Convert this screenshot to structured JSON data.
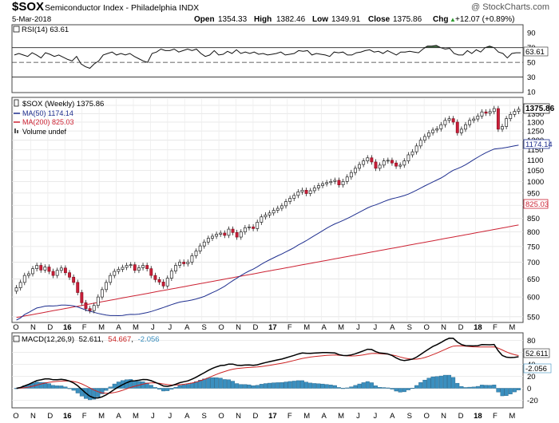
{
  "header": {
    "symbol": "$SOX",
    "name": "Semiconductor Index - Philadelphia  INDX",
    "date": "5-Mar-2018",
    "watermark": "@ StockCharts.com",
    "quote_open_label": "Open",
    "quote_open": "1354.33",
    "quote_high_label": "High",
    "quote_high": "1382.46",
    "quote_low_label": "Low",
    "quote_low": "1349.91",
    "quote_close_label": "Close",
    "quote_close": "1375.86",
    "quote_chg_label": "Chg",
    "quote_chg": "+12.07 (+0.89%)",
    "quote_chg_arrow": "▲"
  },
  "colors": {
    "up_candle": "#ffffff",
    "down_candle": "#cc1f3a",
    "ma50": "#1f2f8f",
    "ma200": "#cc2233",
    "rsi_fill": "#4c7a4c",
    "macd_line": "#000000",
    "signal_line": "#cc2222",
    "histogram": "#3a8fbf"
  },
  "chart_data": [
    {
      "panel": "rsi",
      "type": "line",
      "label": "RSI(14) 63.61",
      "last_value_label": "63.61",
      "ylim": [
        10,
        100
      ],
      "y_ticks": [
        90,
        70,
        50,
        30,
        10
      ],
      "overbought": 70,
      "oversold": 30,
      "values": [
        60,
        62,
        60,
        58,
        63,
        60,
        56,
        63,
        61,
        58,
        60,
        57,
        54,
        52,
        58,
        48,
        44,
        42,
        48,
        52,
        60,
        62,
        64,
        60,
        62,
        60,
        62,
        58,
        55,
        52,
        50,
        62,
        64,
        68,
        66,
        66,
        68,
        64,
        66,
        68,
        66,
        68,
        62,
        58,
        60,
        66,
        60,
        61,
        65,
        62,
        67,
        62,
        64,
        62,
        64,
        61,
        62,
        60,
        61,
        62,
        64,
        60,
        61,
        62,
        66,
        65,
        66,
        60,
        62,
        61,
        60,
        58,
        64,
        63,
        64,
        60,
        60,
        63,
        64,
        66,
        67,
        64,
        65,
        62,
        66,
        63,
        60,
        64,
        64,
        65,
        64,
        63,
        68,
        72,
        72,
        73,
        70,
        68,
        69,
        62,
        60,
        60,
        66,
        62,
        67,
        64,
        70,
        72,
        70,
        64,
        62,
        56,
        62,
        63,
        63
      ]
    },
    {
      "panel": "price",
      "type": "candlestick",
      "label": "$SOX (Weekly) 1375.86",
      "last_value_label": "1375.86",
      "y_scale": "log",
      "ylim": [
        540,
        1440
      ],
      "y_ticks": [
        1400,
        1350,
        1300,
        1250,
        1200,
        1150,
        1100,
        1050,
        1000,
        950,
        900,
        850,
        800,
        750,
        700,
        650,
        600,
        550
      ],
      "x_tick_labels": [
        "O",
        "N",
        "D",
        "16",
        "F",
        "M",
        "A",
        "M",
        "J",
        "J",
        "A",
        "S",
        "O",
        "N",
        "D",
        "17",
        "F",
        "M",
        "A",
        "M",
        "J",
        "J",
        "A",
        "S",
        "O",
        "N",
        "D",
        "18",
        "F",
        "M"
      ],
      "ma50": {
        "label": "MA(50) 1174.14",
        "last_value_label": "1174.14"
      },
      "ma200": {
        "label": "MA(200) 825.03",
        "last_value_label": "825.03"
      },
      "volume": {
        "label": "Volume undef"
      },
      "close": [
        625,
        640,
        660,
        665,
        680,
        690,
        676,
        685,
        672,
        660,
        675,
        682,
        668,
        655,
        640,
        612,
        585,
        570,
        565,
        578,
        600,
        620,
        640,
        660,
        672,
        678,
        684,
        690,
        692,
        675,
        683,
        690,
        680,
        660,
        648,
        641,
        630,
        652,
        673,
        690,
        700,
        695,
        700,
        720,
        735,
        752,
        765,
        778,
        785,
        792,
        796,
        788,
        810,
        798,
        782,
        800,
        815,
        818,
        812,
        835,
        855,
        862,
        870,
        880,
        888,
        898,
        915,
        928,
        940,
        955,
        962,
        948,
        960,
        972,
        982,
        990,
        995,
        1000,
        1005,
        985,
        1000,
        1020,
        1040,
        1060,
        1078,
        1095,
        1110,
        1090,
        1060,
        1075,
        1095,
        1098,
        1085,
        1070,
        1075,
        1095,
        1125,
        1140,
        1170,
        1200,
        1220,
        1240,
        1255,
        1262,
        1285,
        1310,
        1320,
        1300,
        1240,
        1260,
        1285,
        1310,
        1318,
        1335,
        1360,
        1352,
        1362,
        1380,
        1260,
        1275,
        1320,
        1345,
        1363,
        1376
      ]
    },
    {
      "panel": "macd",
      "type": "line",
      "label": "MACD(12,26,9)",
      "value_macd_label": "52.611",
      "value_signal_label": "54.667",
      "value_hist_label": "-2.056",
      "last_macd_label": "52.611",
      "last_hist_label": "-2.056",
      "ylim": [
        -30,
        90
      ],
      "y_ticks": [
        80,
        60,
        40,
        20,
        0,
        -20
      ],
      "x_tick_labels": [
        "O",
        "N",
        "D",
        "16",
        "F",
        "M",
        "A",
        "M",
        "J",
        "J",
        "A",
        "S",
        "O",
        "N",
        "D",
        "17",
        "F",
        "M",
        "A",
        "M",
        "J",
        "J",
        "A",
        "S",
        "O",
        "N",
        "D",
        "18",
        "F",
        "M"
      ]
    }
  ]
}
